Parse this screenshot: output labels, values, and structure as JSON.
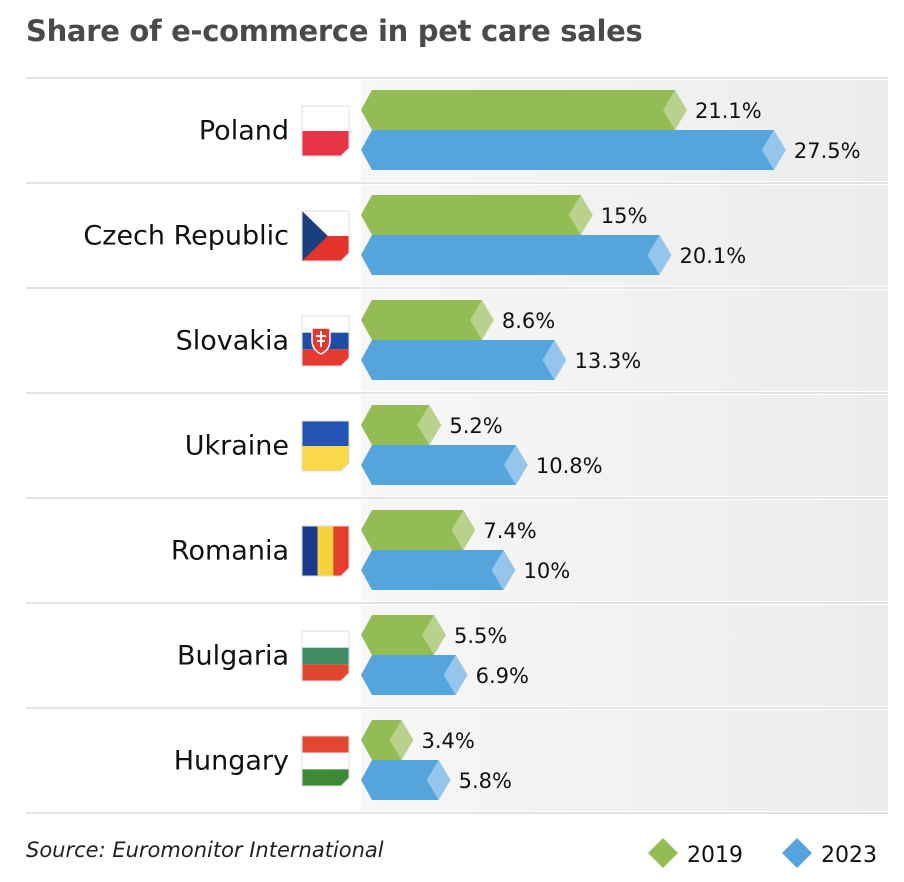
{
  "chart_data": {
    "type": "bar",
    "orientation": "horizontal",
    "title": "Share of e-commerce in pet care sales",
    "source": "Source: Euromonitor International",
    "categories": [
      "Poland",
      "Czech Republic",
      "Slovakia",
      "Ukraine",
      "Romania",
      "Bulgaria",
      "Hungary"
    ],
    "series": [
      {
        "name": "2019",
        "color": "#93bc55",
        "tip_color": "#b8d28d",
        "values": [
          21.1,
          15,
          8.6,
          5.2,
          7.4,
          5.5,
          3.4
        ],
        "labels": [
          "21.1%",
          "15%",
          "8.6%",
          "5.2%",
          "7.4%",
          "5.5%",
          "3.4%"
        ]
      },
      {
        "name": "2023",
        "color": "#55a5dc",
        "tip_color": "#95c5ea",
        "values": [
          27.5,
          20.1,
          13.3,
          10.8,
          10,
          6.9,
          5.8
        ],
        "labels": [
          "27.5%",
          "20.1%",
          "13.3%",
          "10.8%",
          "10%",
          "6.9%",
          "5.8%"
        ]
      }
    ],
    "legend": "bottom-right",
    "flags": [
      "poland-flag",
      "czech-flag",
      "slovakia-flag",
      "ukraine-flag",
      "romania-flag",
      "bulgaria-flag",
      "hungary-flag"
    ]
  }
}
